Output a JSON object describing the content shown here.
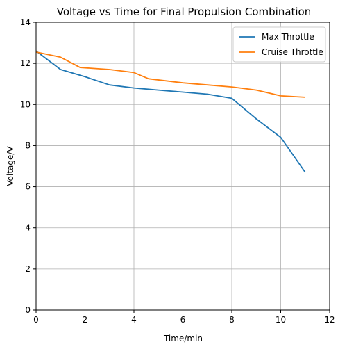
{
  "chart_data": {
    "type": "line",
    "title": "Voltage vs Time for Final Propulsion Combination",
    "xlabel": "Time/min",
    "ylabel": "Voltage/V",
    "xlim": [
      0,
      12
    ],
    "ylim": [
      0,
      14
    ],
    "xticks": [
      "0",
      "2",
      "4",
      "6",
      "8",
      "10",
      "12"
    ],
    "yticks": [
      "0",
      "2",
      "4",
      "6",
      "8",
      "10",
      "12",
      "14"
    ],
    "grid": true,
    "legend_position": "top-right",
    "series": [
      {
        "name": "Max Throttle",
        "color": "#1f77b4",
        "x": [
          0,
          1,
          2,
          3,
          4,
          5,
          6,
          7,
          8,
          9,
          10,
          11
        ],
        "y": [
          12.6,
          11.7,
          11.35,
          10.95,
          10.8,
          10.7,
          10.6,
          10.5,
          10.3,
          9.3,
          8.4,
          6.7
        ]
      },
      {
        "name": "Cruise Throttle",
        "color": "#ff7f0e",
        "x": [
          0,
          1,
          1.8,
          3,
          4,
          4.6,
          6,
          7,
          8,
          9,
          10,
          11
        ],
        "y": [
          12.55,
          12.3,
          11.8,
          11.7,
          11.55,
          11.25,
          11.05,
          10.95,
          10.85,
          10.7,
          10.42,
          10.35
        ]
      }
    ]
  }
}
